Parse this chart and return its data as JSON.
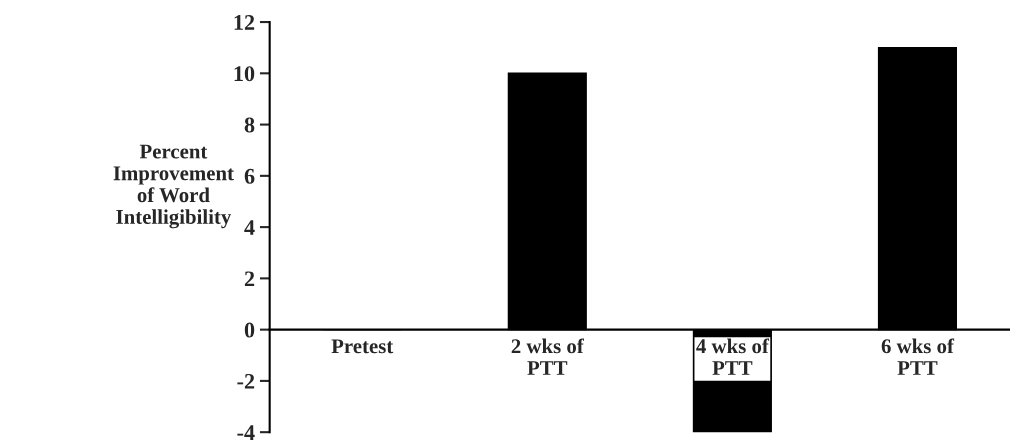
{
  "chart_data": {
    "type": "bar",
    "ylabel": "Percent\nImprovement\nof Word\nIntelligibility",
    "categories": [
      "Pretest",
      "2 wks of\nPTT",
      "4 wks of\nPTT",
      "6 wks of\nPTT"
    ],
    "values": [
      0,
      10,
      -4,
      11
    ],
    "color": "#000000",
    "ylim": [
      -4,
      12
    ],
    "yticks": [
      -4,
      -2,
      0,
      2,
      4,
      6,
      8,
      10,
      12
    ],
    "grid": false,
    "legend": false
  }
}
